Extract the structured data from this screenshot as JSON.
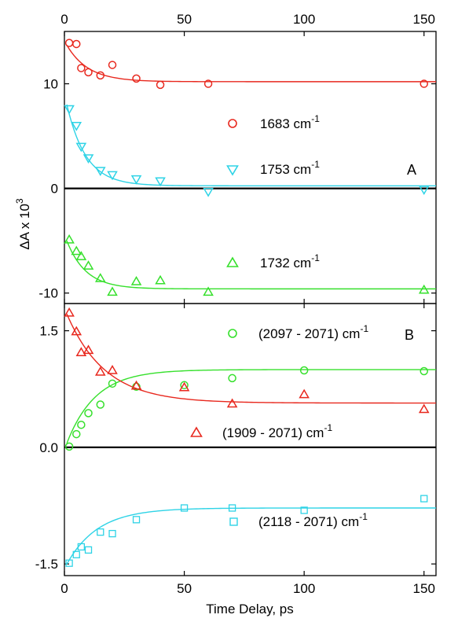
{
  "chart_data": [
    {
      "panel": "A",
      "type": "scatter",
      "xlim": [
        0,
        155
      ],
      "ylim": [
        -11,
        15
      ],
      "x_ticks": [
        0,
        50,
        100,
        150
      ],
      "y_ticks": [
        -10,
        0,
        10
      ],
      "y_tick_labels": [
        "-10",
        "0",
        "10"
      ],
      "top_x_tick_labels": [
        "0",
        "50",
        "100",
        "150"
      ],
      "ylabel": {
        "prefix": "ΔA x 10",
        "sup": "3"
      },
      "panel_label": "A",
      "zero_line": true,
      "series": [
        {
          "name": "1683 cm-1",
          "label_main": "1683 cm",
          "label_sup": "-1",
          "marker": "circle",
          "color": "#e8281e",
          "x": [
            2,
            5,
            7,
            10,
            15,
            20,
            30,
            40,
            60,
            150
          ],
          "y": [
            13.9,
            13.8,
            11.5,
            11.1,
            10.8,
            11.8,
            10.5,
            9.9,
            10.0,
            10.0
          ],
          "fit": {
            "a": 10.2,
            "b": 3.9,
            "tau": 9
          }
        },
        {
          "name": "1753 cm-1",
          "label_main": "1753 cm",
          "label_sup": "-1",
          "marker": "triangle-down",
          "color": "#2ed3e6",
          "x": [
            2,
            5,
            7,
            10,
            15,
            20,
            30,
            40,
            60,
            150
          ],
          "y": [
            7.6,
            6.0,
            4.0,
            2.9,
            1.7,
            1.3,
            0.9,
            0.7,
            -0.3,
            -0.1
          ],
          "fit": {
            "a": 0.25,
            "b": 8.8,
            "tau": 8
          }
        },
        {
          "name": "1732 cm-1",
          "label_main": "1732 cm",
          "label_sup": "-1",
          "marker": "triangle-up",
          "color": "#36e02c",
          "x": [
            2,
            5,
            7,
            10,
            15,
            20,
            30,
            40,
            60,
            150
          ],
          "y": [
            -4.9,
            -6.0,
            -6.5,
            -7.4,
            -8.6,
            -9.9,
            -8.9,
            -8.8,
            -9.9,
            -9.7
          ],
          "fit": {
            "a": -9.6,
            "b": 5.2,
            "tau": 8
          }
        }
      ]
    },
    {
      "panel": "B",
      "type": "scatter",
      "xlim": [
        0,
        155
      ],
      "ylim": [
        -1.65,
        1.85
      ],
      "x_ticks": [
        0,
        50,
        100,
        150
      ],
      "x_tick_labels": [
        "0",
        "50",
        "100",
        "150"
      ],
      "y_ticks": [
        -1.5,
        0,
        1.5
      ],
      "y_tick_labels": [
        "-1.5",
        "0.0",
        "1.5"
      ],
      "xlabel": "Time Delay, ps",
      "panel_label": "B",
      "zero_line": true,
      "series": [
        {
          "name": "(2097 - 2071) cm-1",
          "label_main": "(2097 - 2071) cm",
          "label_sup": "-1",
          "marker": "circle",
          "color": "#36e02c",
          "x": [
            2,
            5,
            7,
            10,
            15,
            20,
            30,
            50,
            70,
            100,
            150
          ],
          "y": [
            0.01,
            0.17,
            0.29,
            0.44,
            0.55,
            0.82,
            0.78,
            0.8,
            0.89,
            0.99,
            0.98
          ],
          "fit": {
            "a": 1.0,
            "b": -1.03,
            "tau": 12
          }
        },
        {
          "name": "(1909 - 2071) cm-1",
          "label_main": "(1909 - 2071) cm",
          "label_sup": "-1",
          "marker": "triangle-up",
          "color": "#e8281e",
          "x": [
            2,
            5,
            7,
            10,
            15,
            20,
            30,
            50,
            70,
            100,
            150
          ],
          "y": [
            1.73,
            1.49,
            1.22,
            1.25,
            0.97,
            0.99,
            0.79,
            0.77,
            0.56,
            0.68,
            0.49
          ],
          "fit": {
            "a": 0.57,
            "b": 1.22,
            "tau": 16
          }
        },
        {
          "name": "(2118 - 2071) cm-1",
          "label_main": "(2118 - 2071) cm",
          "label_sup": "-1",
          "marker": "square",
          "color": "#2ed3e6",
          "x": [
            2,
            5,
            7,
            10,
            15,
            20,
            30,
            50,
            70,
            100,
            150
          ],
          "y": [
            -1.49,
            -1.38,
            -1.28,
            -1.32,
            -1.09,
            -1.11,
            -0.93,
            -0.78,
            -0.78,
            -0.81,
            -0.66
          ],
          "fit": {
            "a": -0.78,
            "b": -0.78,
            "tau": 13
          }
        }
      ]
    }
  ]
}
